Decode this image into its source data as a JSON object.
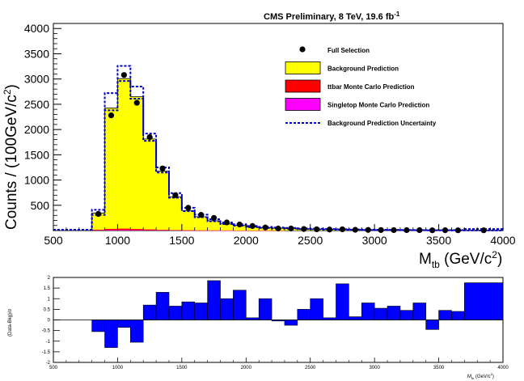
{
  "header": {
    "title_main": "CMS Preliminary, 8 TeV, 19.6 fb",
    "title_sup": "-1"
  },
  "chart_data": [
    {
      "type": "bar",
      "subtype": "stacked-histogram",
      "title": "CMS Preliminary, 8 TeV, 19.6 fb^-1",
      "xlabel": "M_tb (GeV/c^2)",
      "ylabel": "Counts / (100GeV/c^2)",
      "xlim": [
        500,
        4000
      ],
      "ylim": [
        0,
        4100
      ],
      "x_ticks": [
        500,
        1000,
        1500,
        2000,
        2500,
        3000,
        3500,
        4000
      ],
      "y_ticks": [
        500,
        1000,
        1500,
        2000,
        2500,
        3000,
        3500,
        4000
      ],
      "bin_edges": [
        800,
        900,
        1000,
        1100,
        1200,
        1300,
        1400,
        1500,
        1600,
        1700,
        1800,
        1900,
        2000,
        2100,
        2200,
        2300,
        2400,
        2500,
        2600,
        2700,
        2800,
        2900,
        3000,
        3100,
        3200,
        3300,
        3400,
        3500,
        3600,
        3700,
        4000
      ],
      "legend_position": "top-right",
      "legend": [
        {
          "label": "Full Selection",
          "style": "marker",
          "color": "#000000"
        },
        {
          "label": "Background Prediction",
          "style": "fill",
          "color": "#ffff00"
        },
        {
          "label": "ttbar Monte Carlo Prediction",
          "style": "fill",
          "color": "#ff0000"
        },
        {
          "label": "Singletop Monte Carlo Prediction",
          "style": "fill",
          "color": "#ff00ff"
        },
        {
          "label": "Background Prediction Uncertainty",
          "style": "dashed",
          "color": "#0000cc"
        }
      ],
      "series": [
        {
          "name": "Background Prediction",
          "color": "#ffff00",
          "values": [
            330,
            2390,
            2970,
            2620,
            1790,
            1160,
            660,
            390,
            270,
            190,
            130,
            100,
            70,
            55,
            45,
            40,
            30,
            25,
            20,
            18,
            15,
            12,
            10,
            9,
            8,
            7,
            6,
            5,
            4,
            3
          ]
        },
        {
          "name": "ttbar Monte Carlo Prediction",
          "color": "#ff0000",
          "values": [
            12,
            25,
            28,
            22,
            16,
            10,
            6,
            4,
            3,
            2,
            1,
            1,
            1,
            1,
            1,
            0,
            0,
            0,
            0,
            0,
            0,
            0,
            0,
            0,
            0,
            0,
            0,
            0,
            0,
            0
          ]
        },
        {
          "name": "Singletop Monte Carlo Prediction",
          "color": "#ff00ff",
          "values": [
            5,
            8,
            10,
            8,
            6,
            4,
            3,
            2,
            1,
            1,
            1,
            0,
            0,
            0,
            0,
            0,
            0,
            0,
            0,
            0,
            0,
            0,
            0,
            0,
            0,
            0,
            0,
            0,
            0,
            0
          ]
        },
        {
          "name": "Background Prediction Uncertainty",
          "color": "#0000cc",
          "lower": [
            310,
            2380,
            2960,
            2610,
            1775,
            1150,
            650,
            385,
            265,
            185,
            128,
            97,
            68,
            53,
            43,
            38,
            29,
            24,
            19,
            17,
            14,
            11,
            9,
            8,
            7,
            6,
            5,
            4,
            3,
            2
          ],
          "upper": [
            410,
            2720,
            3260,
            2850,
            1920,
            1250,
            740,
            450,
            315,
            225,
            160,
            125,
            90,
            72,
            60,
            52,
            42,
            36,
            30,
            26,
            22,
            19,
            16,
            14,
            12,
            11,
            10,
            9,
            8,
            30
          ]
        },
        {
          "name": "Full Selection",
          "color": "#000000",
          "x": [
            850,
            950,
            1050,
            1150,
            1250,
            1350,
            1450,
            1550,
            1650,
            1750,
            1850,
            1950,
            2050,
            2150,
            2250,
            2350,
            2450,
            2550,
            2650,
            2750,
            2850,
            2950,
            3050,
            3150,
            3250,
            3350,
            3450,
            3550,
            3650,
            3850
          ],
          "y": [
            330,
            2280,
            3080,
            2530,
            1850,
            1230,
            700,
            450,
            310,
            250,
            160,
            120,
            90,
            60,
            40,
            40,
            30,
            25,
            20,
            25,
            15,
            12,
            10,
            9,
            8,
            8,
            5,
            6,
            5,
            5
          ]
        }
      ]
    },
    {
      "type": "bar",
      "subtype": "residual-histogram",
      "ylabel": "(Data-Bkg)/σ",
      "xlabel": "M_tb (GeV/c^2)",
      "xlim": [
        500,
        4000
      ],
      "ylim": [
        -2,
        2
      ],
      "x_ticks": [
        500,
        1000,
        1500,
        2000,
        2500,
        3000,
        3500,
        4000
      ],
      "y_ticks": [
        -2,
        -1.5,
        -1,
        -0.5,
        0,
        0.5,
        1,
        1.5,
        2
      ],
      "color": "#0000ff",
      "bin_edges": [
        800,
        900,
        1000,
        1100,
        1200,
        1300,
        1400,
        1500,
        1600,
        1700,
        1800,
        1900,
        2000,
        2100,
        2200,
        2300,
        2400,
        2500,
        2600,
        2700,
        2800,
        2900,
        3000,
        3100,
        3200,
        3300,
        3400,
        3500,
        3600,
        3700,
        4000
      ],
      "values": [
        -0.55,
        -1.3,
        -0.35,
        -1.05,
        0.7,
        1.3,
        0.65,
        0.85,
        0.8,
        1.85,
        1.0,
        1.4,
        0.1,
        1.0,
        -0.05,
        -0.25,
        0.5,
        1.0,
        0.1,
        1.7,
        0.15,
        0.8,
        0.55,
        0.65,
        0.45,
        0.8,
        -0.45,
        0.45,
        0.4,
        1.75
      ]
    }
  ]
}
